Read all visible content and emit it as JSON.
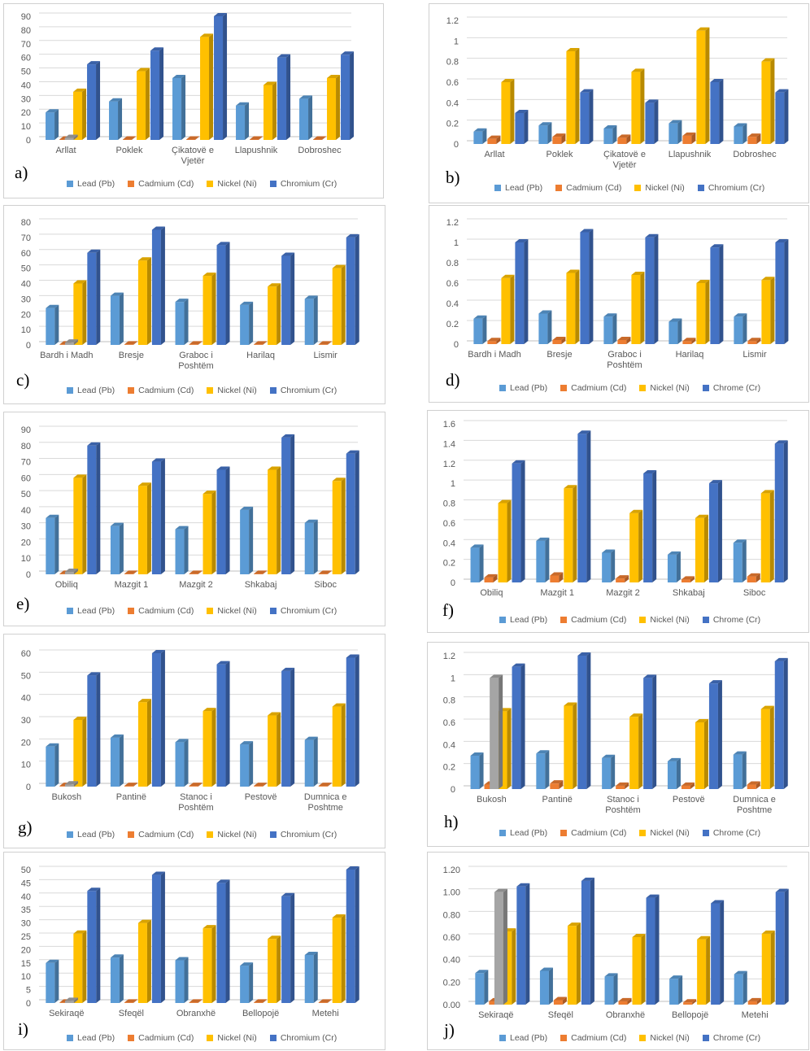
{
  "colors": {
    "lead": "#5b9bd5",
    "cadmium": "#ed7d31",
    "nickel": "#ffc000",
    "chromium": "#4472c4",
    "gray": "#a5a5a5",
    "grid": "#d9d9d9"
  },
  "chart_data": [
    {
      "panel": "a)",
      "type": "bar",
      "ylim": [
        0,
        90
      ],
      "yticks": [
        "0",
        "10",
        "20",
        "30",
        "40",
        "50",
        "60",
        "70",
        "80",
        "90"
      ],
      "categories": [
        [
          "Arllat"
        ],
        [
          "Poklek"
        ],
        [
          "Çikatovë e",
          "Vjetër"
        ],
        [
          "Llapushnik"
        ],
        [
          "Dobroshec"
        ]
      ],
      "series": [
        {
          "name": "Lead (Pb)",
          "values": [
            20,
            28,
            45,
            25,
            30
          ]
        },
        {
          "name": "Cadmium (Cd)",
          "values": [
            0.3,
            0.3,
            0.3,
            0.3,
            0.3
          ]
        },
        {
          "name": "Nickel (Ni)",
          "values": [
            35,
            50,
            75,
            40,
            45
          ]
        },
        {
          "name": "Chromium (Cr)",
          "values": [
            55,
            65,
            90,
            60,
            62
          ]
        }
      ],
      "extra": [
        {
          "category": 0,
          "value": 1.5
        }
      ]
    },
    {
      "panel": "b)",
      "type": "bar",
      "ylim": [
        0,
        1.2
      ],
      "yticks": [
        "0",
        "0.2",
        "0.4",
        "0.6",
        "0.8",
        "1",
        "1.2"
      ],
      "categories": [
        [
          "Arllat"
        ],
        [
          "Poklek"
        ],
        [
          "Çikatovë e",
          "Vjetër"
        ],
        [
          "Llapushnik"
        ],
        [
          "Dobroshec"
        ]
      ],
      "series": [
        {
          "name": "Lead (Pb)",
          "values": [
            0.12,
            0.18,
            0.15,
            0.2,
            0.17
          ]
        },
        {
          "name": "Cadmium (Cd)",
          "values": [
            0.05,
            0.07,
            0.06,
            0.08,
            0.07
          ]
        },
        {
          "name": "Nickel (Ni)",
          "values": [
            0.6,
            0.9,
            0.7,
            1.1,
            0.8
          ]
        },
        {
          "name": "Chromium (Cr)",
          "values": [
            0.3,
            0.5,
            0.4,
            0.6,
            0.5
          ]
        }
      ],
      "extra": []
    },
    {
      "panel": "c)",
      "type": "bar",
      "ylim": [
        0,
        80
      ],
      "yticks": [
        "0",
        "10",
        "20",
        "30",
        "40",
        "50",
        "60",
        "70",
        "80"
      ],
      "categories": [
        [
          "Bardh i Madh"
        ],
        [
          "Bresje"
        ],
        [
          "Graboc i",
          "Poshtëm"
        ],
        [
          "Harilaq"
        ],
        [
          "Lismir"
        ]
      ],
      "series": [
        {
          "name": "Lead (Pb)",
          "values": [
            24,
            32,
            28,
            26,
            30
          ]
        },
        {
          "name": "Cadmium (Cd)",
          "values": [
            0.3,
            0.3,
            0.3,
            0.3,
            0.3
          ]
        },
        {
          "name": "Nickel (Ni)",
          "values": [
            40,
            55,
            45,
            38,
            50
          ]
        },
        {
          "name": "Chromium (Cr)",
          "values": [
            60,
            75,
            65,
            58,
            70
          ]
        }
      ],
      "extra": [
        {
          "category": 0,
          "value": 1.5
        }
      ]
    },
    {
      "panel": "d)",
      "type": "bar",
      "ylim": [
        0,
        1.2
      ],
      "yticks": [
        "0",
        "0.2",
        "0.4",
        "0.6",
        "0.8",
        "1",
        "1.2"
      ],
      "categories": [
        [
          "Bardh i Madh"
        ],
        [
          "Bresje"
        ],
        [
          "Graboc i",
          "Poshtëm"
        ],
        [
          "Harilaq"
        ],
        [
          "Lismir"
        ]
      ],
      "series": [
        {
          "name": "Lead (Pb)",
          "values": [
            0.25,
            0.3,
            0.27,
            0.22,
            0.27
          ]
        },
        {
          "name": "Cadmium (Cd)",
          "values": [
            0.03,
            0.04,
            0.04,
            0.03,
            0.03
          ]
        },
        {
          "name": "Nickel (Ni)",
          "values": [
            0.65,
            0.7,
            0.68,
            0.6,
            0.63
          ]
        },
        {
          "name": "Chrome (Cr)",
          "values": [
            1.0,
            1.1,
            1.05,
            0.95,
            1.0
          ]
        }
      ],
      "extra": []
    },
    {
      "panel": "e)",
      "type": "bar",
      "ylim": [
        0,
        90
      ],
      "yticks": [
        "0",
        "10",
        "20",
        "30",
        "40",
        "50",
        "60",
        "70",
        "80",
        "90"
      ],
      "categories": [
        [
          "Obiliq"
        ],
        [
          "Mazgit 1"
        ],
        [
          "Mazgit 2"
        ],
        [
          "Shkabaj"
        ],
        [
          "Siboc"
        ]
      ],
      "series": [
        {
          "name": "Lead (Pb)",
          "values": [
            35,
            30,
            28,
            40,
            32
          ]
        },
        {
          "name": "Cadmium (Cd)",
          "values": [
            0.3,
            0.3,
            0.3,
            0.3,
            0.3
          ]
        },
        {
          "name": "Nickel (Ni)",
          "values": [
            60,
            55,
            50,
            65,
            58
          ]
        },
        {
          "name": "Chromium (Cr)",
          "values": [
            80,
            70,
            65,
            85,
            75
          ]
        }
      ],
      "extra": [
        {
          "category": 0,
          "value": 1.5
        }
      ]
    },
    {
      "panel": "f)",
      "type": "bar",
      "ylim": [
        0,
        1.6
      ],
      "yticks": [
        "0",
        "0.2",
        "0.4",
        "0.6",
        "0.8",
        "1",
        "1.2",
        "1.4",
        "1.6"
      ],
      "categories": [
        [
          "Obiliq"
        ],
        [
          "Mazgit 1"
        ],
        [
          "Mazgit 2"
        ],
        [
          "Shkabaj"
        ],
        [
          "Siboc"
        ]
      ],
      "series": [
        {
          "name": "Lead (Pb)",
          "values": [
            0.35,
            0.42,
            0.3,
            0.28,
            0.4
          ]
        },
        {
          "name": "Cadmium (Cd)",
          "values": [
            0.05,
            0.07,
            0.04,
            0.03,
            0.06
          ]
        },
        {
          "name": "Nickel (Ni)",
          "values": [
            0.8,
            0.95,
            0.7,
            0.65,
            0.9
          ]
        },
        {
          "name": "Chrome (Cr)",
          "values": [
            1.2,
            1.5,
            1.1,
            1.0,
            1.4
          ]
        }
      ],
      "extra": []
    },
    {
      "panel": "g)",
      "type": "bar",
      "ylim": [
        0,
        60
      ],
      "yticks": [
        "0",
        "10",
        "20",
        "30",
        "40",
        "50",
        "60"
      ],
      "categories": [
        [
          "Bukosh"
        ],
        [
          "Pantinë"
        ],
        [
          "Stanoc i",
          "Poshtëm"
        ],
        [
          "Pestovë"
        ],
        [
          "Dumnica e",
          "Poshtme"
        ]
      ],
      "series": [
        {
          "name": "Lead (Pb)",
          "values": [
            18,
            22,
            20,
            19,
            21
          ]
        },
        {
          "name": "Cadmium (Cd)",
          "values": [
            0.3,
            0.3,
            0.3,
            0.3,
            0.3
          ]
        },
        {
          "name": "Nickel (Ni)",
          "values": [
            30,
            38,
            34,
            32,
            36
          ]
        },
        {
          "name": "Chromium (Cr)",
          "values": [
            50,
            60,
            55,
            52,
            58
          ]
        }
      ],
      "extra": [
        {
          "category": 0,
          "value": 1.0
        }
      ]
    },
    {
      "panel": "h)",
      "type": "bar",
      "ylim": [
        0,
        1.2
      ],
      "yticks": [
        "0",
        "0.2",
        "0.4",
        "0.6",
        "0.8",
        "1",
        "1.2"
      ],
      "categories": [
        [
          "Bukosh"
        ],
        [
          "Pantinë"
        ],
        [
          "Stanoc i",
          "Poshtëm"
        ],
        [
          "Pestovë"
        ],
        [
          "Dumnica e",
          "Poshtme"
        ]
      ],
      "series": [
        {
          "name": "Lead (Pb)",
          "values": [
            0.3,
            0.32,
            0.28,
            0.25,
            0.31
          ]
        },
        {
          "name": "Cadmium (Cd)",
          "values": [
            0.04,
            0.05,
            0.03,
            0.03,
            0.04
          ]
        },
        {
          "name": "Nickel (Ni)",
          "values": [
            0.7,
            0.75,
            0.65,
            0.6,
            0.72
          ]
        },
        {
          "name": "Chrome (Cr)",
          "values": [
            1.1,
            1.2,
            1.0,
            0.95,
            1.15
          ]
        }
      ],
      "extra": [
        {
          "category": 0,
          "value": 1.0
        }
      ]
    },
    {
      "panel": "i)",
      "type": "bar",
      "ylim": [
        0,
        50
      ],
      "yticks": [
        "0",
        "5",
        "10",
        "15",
        "20",
        "25",
        "30",
        "35",
        "40",
        "45",
        "50"
      ],
      "categories": [
        [
          "Sekiraqë"
        ],
        [
          "Sfeqël"
        ],
        [
          "Obranxhë"
        ],
        [
          "Bellopojë"
        ],
        [
          "Metehi"
        ]
      ],
      "series": [
        {
          "name": "Lead (Pb)",
          "values": [
            15,
            17,
            16,
            14,
            18
          ]
        },
        {
          "name": "Cadmium (Cd)",
          "values": [
            0.2,
            0.2,
            0.2,
            0.2,
            0.2
          ]
        },
        {
          "name": "Nickel (Ni)",
          "values": [
            26,
            30,
            28,
            24,
            32
          ]
        },
        {
          "name": "Chromium (Cr)",
          "values": [
            42,
            48,
            45,
            40,
            50
          ]
        }
      ],
      "extra": [
        {
          "category": 0,
          "value": 0.8
        }
      ]
    },
    {
      "panel": "j)",
      "type": "bar",
      "ylim": [
        0,
        1.2
      ],
      "yticks": [
        "0.00",
        "0.20",
        "0.40",
        "0.60",
        "0.80",
        "1.00",
        "1.20"
      ],
      "categories": [
        [
          "Sekiraqë"
        ],
        [
          "Sfeqël"
        ],
        [
          "Obranxhë"
        ],
        [
          "Bellopojë"
        ],
        [
          "Metehi"
        ]
      ],
      "series": [
        {
          "name": "Lead (Pb)",
          "values": [
            0.28,
            0.3,
            0.25,
            0.23,
            0.27
          ]
        },
        {
          "name": "Cadmium (Cd)",
          "values": [
            0.03,
            0.04,
            0.03,
            0.02,
            0.03
          ]
        },
        {
          "name": "Nickel (Ni)",
          "values": [
            0.65,
            0.7,
            0.6,
            0.58,
            0.63
          ]
        },
        {
          "name": "Chrome (Cr)",
          "values": [
            1.05,
            1.1,
            0.95,
            0.9,
            1.0
          ]
        }
      ],
      "extra": [
        {
          "category": 0,
          "value": 1.0
        }
      ]
    }
  ]
}
